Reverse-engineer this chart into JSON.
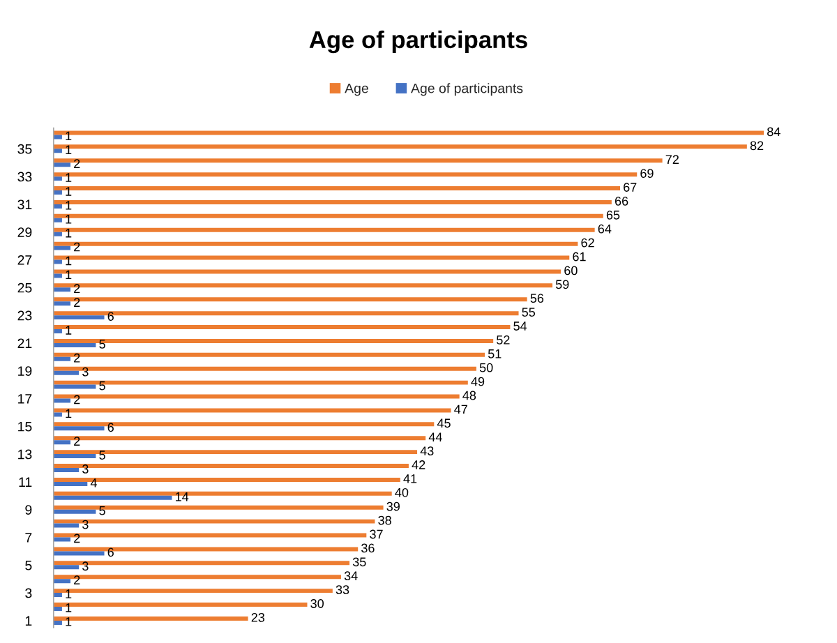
{
  "chart_data": {
    "type": "bar",
    "orientation": "horizontal",
    "title": "Age of participants",
    "categories": [
      null,
      "35",
      null,
      "33",
      null,
      "31",
      null,
      "29",
      null,
      "27",
      null,
      "25",
      null,
      "23",
      null,
      "21",
      null,
      "19",
      null,
      "17",
      null,
      "15",
      null,
      "13",
      null,
      "11",
      null,
      "9",
      null,
      "7",
      null,
      "5",
      null,
      "3",
      null,
      "1"
    ],
    "series": [
      {
        "name": "Age",
        "color": "#ed7d31",
        "values": [
          84,
          82,
          72,
          69,
          67,
          66,
          65,
          64,
          62,
          61,
          60,
          59,
          56,
          55,
          54,
          52,
          51,
          50,
          49,
          48,
          47,
          45,
          44,
          43,
          42,
          41,
          40,
          39,
          38,
          37,
          36,
          35,
          34,
          33,
          30,
          23
        ]
      },
      {
        "name": "Age of participants",
        "color": "#4472c4",
        "values": [
          1,
          1,
          2,
          1,
          1,
          1,
          1,
          1,
          2,
          1,
          1,
          2,
          2,
          6,
          1,
          5,
          2,
          3,
          5,
          2,
          1,
          6,
          2,
          5,
          3,
          4,
          14,
          5,
          3,
          2,
          6,
          3,
          2,
          1,
          1,
          1
        ]
      }
    ],
    "data_labels": true,
    "legend": "top",
    "tick_labels": "y"
  }
}
